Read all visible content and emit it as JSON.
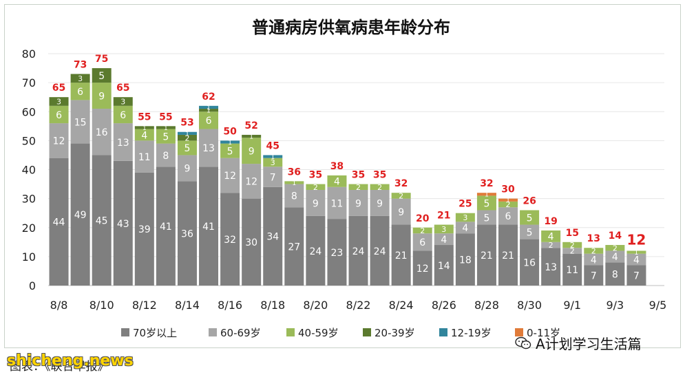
{
  "chart_data": {
    "type": "bar",
    "stacked": true,
    "title": "普通病房供氧病患年龄分布",
    "xlabel": "",
    "ylabel": "",
    "ylim": [
      0,
      80
    ],
    "yticks": [
      "0",
      "10",
      "20",
      "30",
      "40",
      "50",
      "60",
      "70",
      "80"
    ],
    "grid": true,
    "legend_position": "bottom",
    "categories": [
      "8/8",
      "8/9",
      "8/10",
      "8/11",
      "8/12",
      "8/13",
      "8/14",
      "8/15",
      "8/16",
      "8/17",
      "8/18",
      "8/19",
      "8/20",
      "8/21",
      "8/22",
      "8/23",
      "8/24",
      "8/25",
      "8/26",
      "8/27",
      "8/28",
      "8/29",
      "8/30",
      "8/31",
      "9/1",
      "9/2",
      "9/3",
      "9/4"
    ],
    "x_tick_labels": [
      "8/8",
      "8/10",
      "8/12",
      "8/14",
      "8/16",
      "8/18",
      "8/20",
      "8/22",
      "8/24",
      "8/26",
      "8/28",
      "8/30",
      "9/1",
      "9/3",
      "9/5"
    ],
    "series": [
      {
        "name": "70岁以上",
        "color": "#7f7f7f",
        "label_color": "#ffffff",
        "values": [
          44,
          49,
          45,
          43,
          39,
          41,
          36,
          41,
          32,
          30,
          34,
          27,
          24,
          23,
          24,
          24,
          21,
          12,
          14,
          18,
          21,
          21,
          16,
          13,
          11,
          7,
          8,
          7
        ]
      },
      {
        "name": "60-69岁",
        "color": "#a6a6a6",
        "label_color": "#ffffff",
        "values": [
          12,
          15,
          16,
          13,
          11,
          8,
          9,
          13,
          12,
          12,
          7,
          8,
          9,
          11,
          9,
          9,
          9,
          6,
          4,
          4,
          5,
          6,
          5,
          2,
          2,
          4,
          4,
          4
        ]
      },
      {
        "name": "40-59岁",
        "color": "#9bbb59",
        "label_color": "#ffffff",
        "values": [
          6,
          6,
          9,
          6,
          4,
          5,
          5,
          6,
          5,
          9,
          3,
          1,
          2,
          4,
          2,
          2,
          2,
          2,
          3,
          3,
          5,
          2,
          5,
          4,
          2,
          2,
          2,
          1
        ]
      },
      {
        "name": "20-39岁",
        "color": "#5b7a2e",
        "label_color": "#ffffff",
        "values": [
          3,
          3,
          5,
          3,
          1,
          1,
          2,
          1,
          0,
          1,
          0,
          0,
          0,
          0,
          0,
          0,
          0,
          0,
          0,
          0,
          0,
          0,
          0,
          0,
          0,
          0,
          0,
          0
        ]
      },
      {
        "name": "12-19岁",
        "color": "#31859c",
        "label_color": "#ffffff",
        "values": [
          0,
          0,
          0,
          0,
          0,
          0,
          1,
          1,
          1,
          0,
          1,
          0,
          0,
          0,
          0,
          0,
          0,
          0,
          0,
          0,
          0,
          0,
          0,
          0,
          0,
          0,
          0,
          0
        ]
      },
      {
        "name": "0-11岁",
        "color": "#e07b39",
        "label_color": "#ffffff",
        "values": [
          0,
          0,
          0,
          0,
          0,
          0,
          0,
          0,
          0,
          0,
          0,
          0,
          0,
          0,
          0,
          0,
          0,
          0,
          0,
          0,
          1,
          1,
          0,
          0,
          0,
          0,
          0,
          0
        ]
      }
    ],
    "totals": [
      65,
      73,
      75,
      65,
      55,
      55,
      53,
      62,
      50,
      52,
      45,
      36,
      35,
      38,
      35,
      35,
      32,
      20,
      21,
      25,
      32,
      30,
      26,
      19,
      15,
      13,
      14,
      12
    ],
    "total_label_color": "#e02020",
    "highlight_last_total": true
  },
  "footer": {
    "left_text": "图表：《联合早报》",
    "watermark": "shicheng.news",
    "wechat_name": "A计划学习生活篇",
    "wechat_icon": "wechat-icon"
  }
}
